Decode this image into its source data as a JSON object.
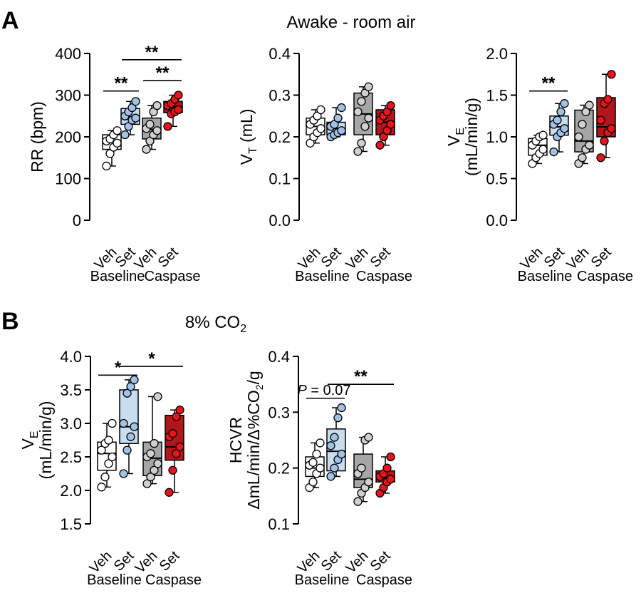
{
  "figure": {
    "panelA_letter": "A",
    "panelA_title": "Awake - room air",
    "panelB_letter": "B",
    "panelB_title": "8% CO",
    "panelB_title_sub": "2"
  },
  "colors": {
    "Baseline Veh": "#ffffff",
    "Baseline Set": "#c9ddf0",
    "Caspase Veh": "#a6a6a6",
    "Caspase Set": "#b2151b",
    "Baseline Veh point": "#ffffff",
    "Baseline Set point": "#9fc2e6",
    "Caspase Veh point": "#d0d0d0",
    "Caspase Set point": "#e8141c"
  },
  "chart_data": [
    {
      "id": "rr",
      "type": "box",
      "panel": "A",
      "ylabel": "RR (bpm)",
      "ylabel_parts": [
        {
          "t": "RR (bpm)"
        }
      ],
      "ylim": [
        0,
        400
      ],
      "yticks": [
        0,
        100,
        200,
        300,
        400
      ],
      "ytick_labels": [
        "0",
        "100",
        "200",
        "300",
        "400"
      ],
      "categories": [
        "Veh",
        "Set",
        "Veh",
        "Set"
      ],
      "groups": [
        "Baseline",
        "Caspase"
      ],
      "series": [
        {
          "name": "Baseline Veh",
          "points": [
            130,
            160,
            175,
            185,
            190,
            195,
            205,
            215
          ],
          "box": {
            "min": 130,
            "q1": 170,
            "median": 190,
            "q3": 205,
            "max": 215
          }
        },
        {
          "name": "Baseline Set",
          "points": [
            205,
            225,
            240,
            245,
            250,
            260,
            270,
            285
          ],
          "box": {
            "min": 205,
            "q1": 230,
            "median": 248,
            "q3": 268,
            "max": 285
          }
        },
        {
          "name": "Caspase Veh",
          "points": [
            170,
            190,
            205,
            215,
            220,
            230,
            260,
            275
          ],
          "box": {
            "min": 170,
            "q1": 195,
            "median": 218,
            "q3": 245,
            "max": 275
          }
        },
        {
          "name": "Caspase Set",
          "points": [
            225,
            255,
            260,
            265,
            275,
            280,
            290,
            300
          ],
          "box": {
            "min": 225,
            "q1": 258,
            "median": 272,
            "q3": 285,
            "max": 300
          }
        }
      ],
      "annotations": [
        {
          "from": 0,
          "to": 1,
          "y": 310,
          "label": "**"
        },
        {
          "from": 1,
          "to": 3,
          "y": 385,
          "label": "**"
        },
        {
          "from": 2,
          "to": 3,
          "y": 335,
          "label": "**"
        }
      ]
    },
    {
      "id": "vt",
      "type": "box",
      "panel": "A",
      "ylabel": "VT (mL)",
      "ylabel_parts": [
        {
          "t": "V"
        },
        {
          "t": "T",
          "sub": true
        },
        {
          "t": " (mL)"
        }
      ],
      "ylim": [
        0,
        0.4
      ],
      "yticks": [
        0,
        0.1,
        0.2,
        0.3,
        0.4
      ],
      "ytick_labels": [
        "0.0",
        "0.1",
        "0.2",
        "0.3",
        "0.4"
      ],
      "categories": [
        "Veh",
        "Set",
        "Veh",
        "Set"
      ],
      "groups": [
        "Baseline",
        "Caspase"
      ],
      "series": [
        {
          "name": "Baseline Veh",
          "points": [
            0.185,
            0.2,
            0.21,
            0.22,
            0.23,
            0.24,
            0.25,
            0.265
          ],
          "box": {
            "min": 0.185,
            "q1": 0.205,
            "median": 0.225,
            "q3": 0.245,
            "max": 0.265
          }
        },
        {
          "name": "Baseline Set",
          "points": [
            0.2,
            0.205,
            0.21,
            0.215,
            0.225,
            0.23,
            0.245,
            0.27
          ],
          "box": {
            "min": 0.2,
            "q1": 0.205,
            "median": 0.22,
            "q3": 0.235,
            "max": 0.27
          }
        },
        {
          "name": "Caspase Veh",
          "points": [
            0.165,
            0.185,
            0.225,
            0.245,
            0.26,
            0.285,
            0.305,
            0.32
          ],
          "box": {
            "min": 0.165,
            "q1": 0.205,
            "median": 0.255,
            "q3": 0.305,
            "max": 0.32
          }
        },
        {
          "name": "Caspase Set",
          "points": [
            0.18,
            0.2,
            0.215,
            0.23,
            0.24,
            0.25,
            0.26,
            0.275
          ],
          "box": {
            "min": 0.18,
            "q1": 0.205,
            "median": 0.235,
            "q3": 0.265,
            "max": 0.275
          }
        }
      ],
      "annotations": []
    },
    {
      "id": "ve_air",
      "type": "box",
      "panel": "A",
      "ylabel": "VE (mL/min/g)",
      "ylabel_parts": [
        {
          "t": "V"
        },
        {
          "t": "E",
          "sub": true
        }
      ],
      "ylabel_line2": "(mL/min/g)",
      "ylim": [
        0,
        2.0
      ],
      "yticks": [
        0,
        0.5,
        1.0,
        1.5,
        2.0
      ],
      "ytick_labels": [
        "0.0",
        "0.5",
        "1.0",
        "1.5",
        "2.0"
      ],
      "categories": [
        "Veh",
        "Set",
        "Veh",
        "Set"
      ],
      "groups": [
        "Baseline",
        "Caspase"
      ],
      "series": [
        {
          "name": "Baseline Veh",
          "points": [
            0.68,
            0.75,
            0.8,
            0.85,
            0.9,
            0.95,
            1.0,
            1.02
          ],
          "box": {
            "min": 0.68,
            "q1": 0.78,
            "median": 0.9,
            "q3": 0.98,
            "max": 1.02
          }
        },
        {
          "name": "Baseline Set",
          "points": [
            0.82,
            1.0,
            1.05,
            1.1,
            1.15,
            1.2,
            1.3,
            1.4
          ],
          "box": {
            "min": 0.82,
            "q1": 1.02,
            "median": 1.12,
            "q3": 1.25,
            "max": 1.4
          }
        },
        {
          "name": "Caspase Veh",
          "points": [
            0.68,
            0.75,
            0.85,
            0.9,
            1.0,
            1.15,
            1.3,
            1.38
          ],
          "box": {
            "min": 0.68,
            "q1": 0.82,
            "median": 0.95,
            "q3": 1.32,
            "max": 1.38
          }
        },
        {
          "name": "Caspase Set",
          "points": [
            0.75,
            0.95,
            1.05,
            1.1,
            1.2,
            1.4,
            1.45,
            1.75
          ],
          "box": {
            "min": 0.75,
            "q1": 1.0,
            "median": 1.12,
            "q3": 1.47,
            "max": 1.75
          }
        }
      ],
      "annotations": [
        {
          "from": 0,
          "to": 1,
          "y": 1.55,
          "label": "**"
        }
      ]
    },
    {
      "id": "ve_co2",
      "type": "box",
      "panel": "B",
      "ylabel": "VE (mL/min/g)",
      "ylabel_parts": [
        {
          "t": "V"
        },
        {
          "t": "E",
          "sub": true
        }
      ],
      "ylabel_line2": "(mL/min/g)",
      "ylim": [
        1.5,
        4.0
      ],
      "yticks": [
        1.5,
        2.0,
        2.5,
        3.0,
        3.5,
        4.0
      ],
      "ytick_labels": [
        "1.5",
        "2.0",
        "2.5",
        "3.0",
        "3.5",
        "4.0"
      ],
      "categories": [
        "Veh",
        "Set",
        "Veh",
        "Set"
      ],
      "groups": [
        "Baseline",
        "Caspase"
      ],
      "series": [
        {
          "name": "Baseline Veh",
          "points": [
            2.05,
            2.2,
            2.4,
            2.5,
            2.6,
            2.7,
            2.75,
            3.0
          ],
          "box": {
            "min": 2.05,
            "q1": 2.3,
            "median": 2.55,
            "q3": 2.72,
            "max": 3.0
          }
        },
        {
          "name": "Baseline Set",
          "points": [
            2.25,
            2.6,
            2.8,
            2.95,
            3.0,
            3.45,
            3.55,
            3.65
          ],
          "box": {
            "min": 2.25,
            "q1": 2.7,
            "median": 2.95,
            "q3": 3.5,
            "max": 3.65
          }
        },
        {
          "name": "Caspase Veh",
          "points": [
            2.1,
            2.2,
            2.3,
            2.4,
            2.5,
            2.55,
            2.7,
            3.4
          ],
          "box": {
            "min": 2.1,
            "q1": 2.22,
            "median": 2.48,
            "q3": 2.72,
            "max": 3.4
          }
        },
        {
          "name": "Caspase Set",
          "points": [
            1.97,
            2.3,
            2.55,
            2.65,
            2.8,
            2.85,
            3.1,
            3.2
          ],
          "box": {
            "min": 1.97,
            "q1": 2.45,
            "median": 2.65,
            "q3": 3.12,
            "max": 3.2
          }
        }
      ],
      "annotations": [
        {
          "from": 0,
          "to": 1,
          "y": 3.72,
          "label": "*"
        },
        {
          "from": 1,
          "to": 3,
          "y": 3.85,
          "label": "*"
        }
      ]
    },
    {
      "id": "hcvr",
      "type": "box",
      "panel": "B",
      "ylabel": "HCVR",
      "ylabel_parts": [
        {
          "t": "HCVR"
        }
      ],
      "ylabel_line2": "ΔmL/min/Δ%CO2/g",
      "ylim": [
        0.1,
        0.4
      ],
      "yticks": [
        0.1,
        0.2,
        0.3,
        0.4
      ],
      "ytick_labels": [
        "0.1",
        "0.2",
        "0.3",
        "0.4"
      ],
      "categories": [
        "Veh",
        "Set",
        "Veh",
        "Set"
      ],
      "groups": [
        "Baseline",
        "Caspase"
      ],
      "series": [
        {
          "name": "Baseline Veh",
          "points": [
            0.165,
            0.175,
            0.19,
            0.2,
            0.205,
            0.21,
            0.225,
            0.245
          ],
          "box": {
            "min": 0.165,
            "q1": 0.185,
            "median": 0.2,
            "q3": 0.22,
            "max": 0.245
          }
        },
        {
          "name": "Baseline Set",
          "points": [
            0.185,
            0.2,
            0.215,
            0.225,
            0.24,
            0.255,
            0.29,
            0.308
          ],
          "box": {
            "min": 0.185,
            "q1": 0.195,
            "median": 0.23,
            "q3": 0.27,
            "max": 0.308
          }
        },
        {
          "name": "Caspase Veh",
          "points": [
            0.14,
            0.155,
            0.165,
            0.175,
            0.19,
            0.2,
            0.25,
            0.255
          ],
          "box": {
            "min": 0.14,
            "q1": 0.165,
            "median": 0.18,
            "q3": 0.225,
            "max": 0.255
          }
        },
        {
          "name": "Caspase Set",
          "points": [
            0.155,
            0.165,
            0.175,
            0.18,
            0.185,
            0.19,
            0.2,
            0.22
          ],
          "box": {
            "min": 0.155,
            "q1": 0.175,
            "median": 0.182,
            "q3": 0.195,
            "max": 0.22
          }
        }
      ],
      "annotations": [
        {
          "from": 0,
          "to": 1,
          "y": 0.325,
          "label": "P = 0.07",
          "italicP": true
        },
        {
          "from": 1,
          "to": 3,
          "y": 0.35,
          "label": "**"
        }
      ]
    }
  ]
}
